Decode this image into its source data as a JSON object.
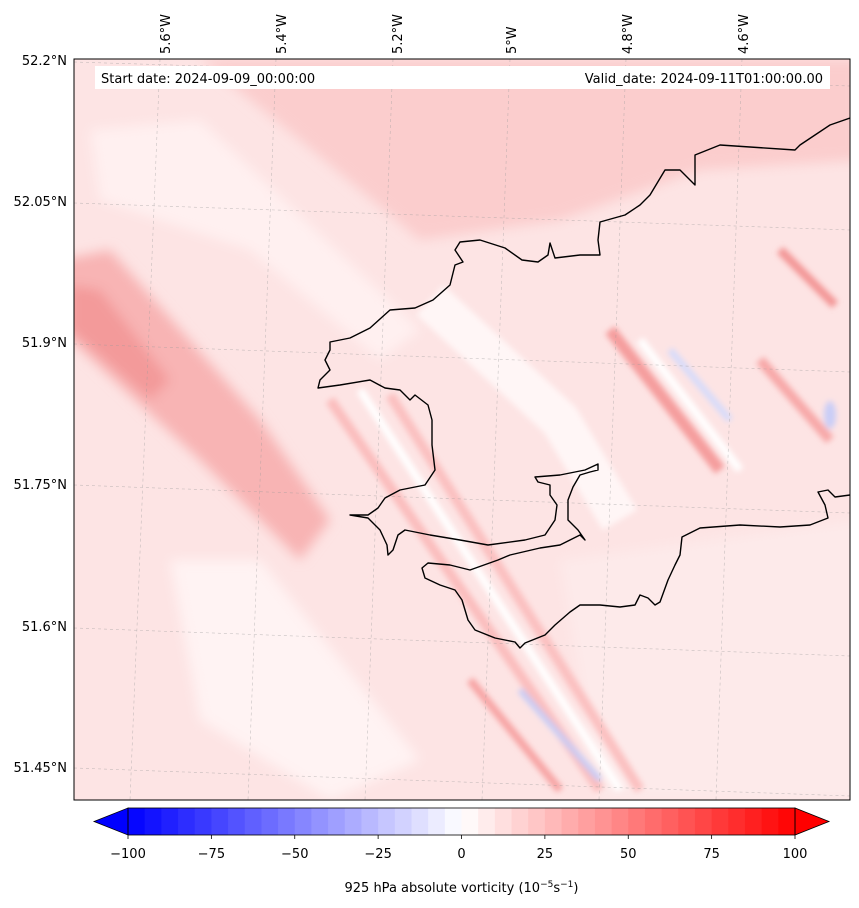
{
  "map": {
    "start_date_label": "Start date: 2024-09-09_00:00:00",
    "valid_date_label": "Valid_date: 2024-09-11T01:00:00.00",
    "lon_labels": [
      "5.6°W",
      "5.4°W",
      "5.2°W",
      "5°W",
      "4.8°W",
      "4.6°W"
    ],
    "lat_labels": [
      "52.2°N",
      "52.05°N",
      "51.9°N",
      "51.75°N",
      "51.6°N",
      "51.45°N"
    ],
    "gridlines": true,
    "coastline_color": "#000000"
  },
  "colorbar": {
    "min": -100,
    "max": 100,
    "step": 5,
    "extend": "both",
    "cmap": "bwr",
    "tick_values": [
      -100,
      -75,
      -50,
      -25,
      0,
      25,
      50,
      75,
      100
    ],
    "tick_labels": [
      "−100",
      "−75",
      "−50",
      "−25",
      "0",
      "25",
      "50",
      "75",
      "100"
    ],
    "label_main": "925 hPa absolute vorticity (10",
    "label_sup1": "−5",
    "label_mid": "s",
    "label_sup2": "−1",
    "label_end": ")"
  },
  "field": {
    "description_colors": {
      "background": "#fde3e3",
      "light": "#fff2f2",
      "medium": "#fbc9c9",
      "strong": "#f59a9a",
      "blue_light": "#e6e9ff",
      "blue_medium": "#c9d0fb"
    }
  }
}
